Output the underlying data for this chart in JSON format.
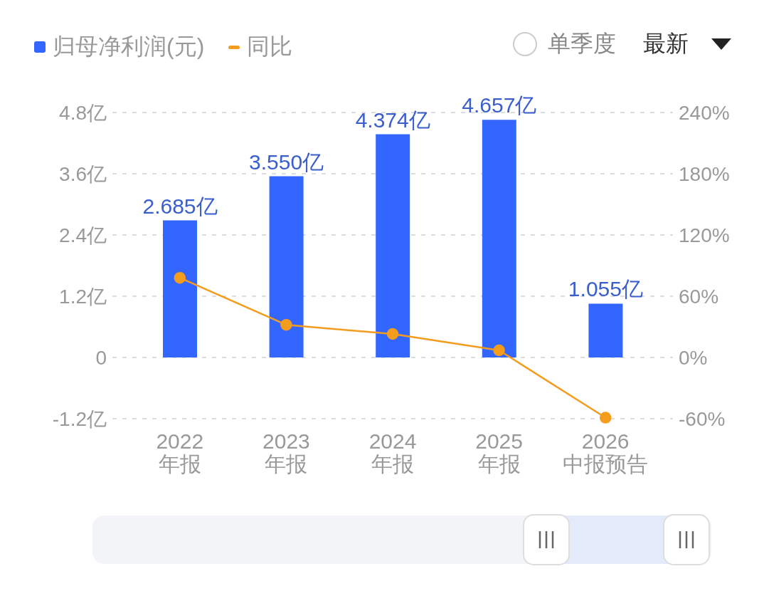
{
  "chart_data": {
    "type": "bar",
    "categories": [
      "2022\n年报",
      "2023\n年报",
      "2024\n年报",
      "2025\n年报",
      "2026\n中报预告"
    ],
    "series": [
      {
        "name": "归母净利润(元)",
        "color": "#3366ff",
        "values": [
          2.685,
          3.55,
          4.374,
          4.657,
          1.055
        ],
        "value_labels": [
          "2.685亿",
          "3.550亿",
          "4.374亿",
          "4.657亿",
          "1.055亿"
        ]
      },
      {
        "name": "同比",
        "type": "line",
        "axis": "y2",
        "color": "#f39c1e",
        "values": [
          78,
          32,
          23,
          7,
          -59
        ]
      }
    ],
    "ylim": [
      -1.2,
      4.8
    ],
    "yticks": [
      {
        "value": -1.2,
        "label": "-1.2亿"
      },
      {
        "value": 0,
        "label": "0"
      },
      {
        "value": 1.2,
        "label": "1.2亿"
      },
      {
        "value": 2.4,
        "label": "2.4亿"
      },
      {
        "value": 3.6,
        "label": "3.6亿"
      },
      {
        "value": 4.8,
        "label": "4.8亿"
      }
    ],
    "y2lim": [
      -60,
      240
    ],
    "y2ticks": [
      {
        "value": -60,
        "label": "-60%"
      },
      {
        "value": 0,
        "label": "0%"
      },
      {
        "value": 60,
        "label": "60%"
      },
      {
        "value": 120,
        "label": "120%"
      },
      {
        "value": 180,
        "label": "180%"
      },
      {
        "value": 240,
        "label": "240%"
      }
    ],
    "grid": "y",
    "legend": "top left",
    "marker": "circle",
    "annotations": [
      "单季度",
      "最新"
    ]
  }
}
